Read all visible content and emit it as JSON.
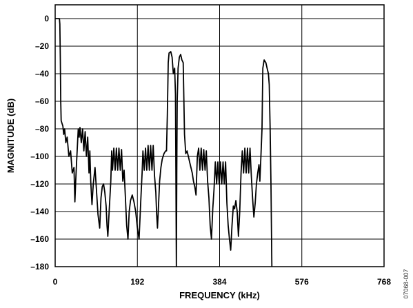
{
  "chart_data": {
    "type": "line",
    "title": "",
    "xlabel": "FREQUENCY (kHz)",
    "ylabel": "MAGNITUDE (dB)",
    "xlim": [
      0,
      768
    ],
    "ylim": [
      -180,
      10
    ],
    "xticks": [
      0,
      192,
      384,
      576,
      768
    ],
    "yticks": [
      0,
      -20,
      -40,
      -60,
      -80,
      -100,
      -120,
      -140,
      -160,
      -180
    ],
    "grid": true,
    "legend": "none",
    "figure_code": "07068-007",
    "series": [
      {
        "values": [
          [
            0,
            0
          ],
          [
            8,
            0
          ],
          [
            10,
            0
          ],
          [
            11,
            -4
          ],
          [
            12,
            -30
          ],
          [
            13,
            -60
          ],
          [
            14,
            -74
          ],
          [
            16,
            -76
          ],
          [
            18,
            -78
          ],
          [
            20,
            -84
          ],
          [
            22,
            -80
          ],
          [
            25,
            -90
          ],
          [
            28,
            -86
          ],
          [
            32,
            -100
          ],
          [
            36,
            -96
          ],
          [
            40,
            -112
          ],
          [
            44,
            -108
          ],
          [
            46,
            -133
          ],
          [
            48,
            -118
          ],
          [
            50,
            -104
          ],
          [
            54,
            -80
          ],
          [
            56,
            -86
          ],
          [
            58,
            -79
          ],
          [
            61,
            -90
          ],
          [
            64,
            -80
          ],
          [
            67,
            -96
          ],
          [
            70,
            -82
          ],
          [
            73,
            -100
          ],
          [
            76,
            -86
          ],
          [
            79,
            -112
          ],
          [
            81,
            -96
          ],
          [
            83,
            -118
          ],
          [
            86,
            -135
          ],
          [
            89,
            -120
          ],
          [
            93,
            -108
          ],
          [
            96,
            -122
          ],
          [
            100,
            -142
          ],
          [
            104,
            -152
          ],
          [
            107,
            -130
          ],
          [
            110,
            -122
          ],
          [
            113,
            -120
          ],
          [
            116,
            -126
          ],
          [
            119,
            -136
          ],
          [
            121,
            -150
          ],
          [
            123,
            -158
          ],
          [
            126,
            -140
          ],
          [
            130,
            -118
          ],
          [
            132,
            -96
          ],
          [
            134,
            -110
          ],
          [
            137,
            -94
          ],
          [
            140,
            -110
          ],
          [
            143,
            -94
          ],
          [
            146,
            -110
          ],
          [
            149,
            -94
          ],
          [
            152,
            -110
          ],
          [
            155,
            -95
          ],
          [
            158,
            -118
          ],
          [
            161,
            -110
          ],
          [
            164,
            -130
          ],
          [
            167,
            -150
          ],
          [
            170,
            -160
          ],
          [
            173,
            -140
          ],
          [
            176,
            -132
          ],
          [
            180,
            -128
          ],
          [
            184,
            -133
          ],
          [
            188,
            -140
          ],
          [
            192,
            -152
          ],
          [
            196,
            -160
          ],
          [
            200,
            -132
          ],
          [
            203,
            -112
          ],
          [
            205,
            -96
          ],
          [
            208,
            -110
          ],
          [
            211,
            -94
          ],
          [
            214,
            -110
          ],
          [
            217,
            -92
          ],
          [
            220,
            -110
          ],
          [
            223,
            -92
          ],
          [
            226,
            -110
          ],
          [
            229,
            -92
          ],
          [
            232,
            -114
          ],
          [
            235,
            -126
          ],
          [
            237,
            -142
          ],
          [
            239,
            -152
          ],
          [
            241,
            -138
          ],
          [
            244,
            -118
          ],
          [
            247,
            -108
          ],
          [
            250,
            -102
          ],
          [
            254,
            -98
          ],
          [
            258,
            -96
          ],
          [
            260,
            -96
          ],
          [
            262,
            -70
          ],
          [
            264,
            -32
          ],
          [
            266,
            -25
          ],
          [
            270,
            -24
          ],
          [
            273,
            -28
          ],
          [
            276,
            -40
          ],
          [
            279,
            -36
          ],
          [
            281,
            -55
          ],
          [
            282,
            -110
          ],
          [
            283,
            -180
          ],
          [
            284,
            -110
          ],
          [
            285,
            -60
          ],
          [
            287,
            -36
          ],
          [
            290,
            -28
          ],
          [
            293,
            -26
          ],
          [
            296,
            -30
          ],
          [
            299,
            -32
          ],
          [
            302,
            -84
          ],
          [
            305,
            -98
          ],
          [
            308,
            -96
          ],
          [
            311,
            -100
          ],
          [
            314,
            -104
          ],
          [
            317,
            -108
          ],
          [
            320,
            -112
          ],
          [
            323,
            -118
          ],
          [
            326,
            -122
          ],
          [
            329,
            -128
          ],
          [
            332,
            -100
          ],
          [
            335,
            -94
          ],
          [
            338,
            -110
          ],
          [
            341,
            -94
          ],
          [
            344,
            -110
          ],
          [
            347,
            -95
          ],
          [
            350,
            -110
          ],
          [
            353,
            -96
          ],
          [
            356,
            -118
          ],
          [
            359,
            -130
          ],
          [
            362,
            -150
          ],
          [
            365,
            -160
          ],
          [
            368,
            -138
          ],
          [
            371,
            -124
          ],
          [
            374,
            -104
          ],
          [
            377,
            -120
          ],
          [
            380,
            -104
          ],
          [
            383,
            -120
          ],
          [
            386,
            -104
          ],
          [
            389,
            -120
          ],
          [
            392,
            -104
          ],
          [
            395,
            -120
          ],
          [
            398,
            -104
          ],
          [
            401,
            -134
          ],
          [
            404,
            -150
          ],
          [
            407,
            -160
          ],
          [
            410,
            -168
          ],
          [
            413,
            -150
          ],
          [
            416,
            -136
          ],
          [
            419,
            -138
          ],
          [
            422,
            -132
          ],
          [
            425,
            -140
          ],
          [
            428,
            -158
          ],
          [
            431,
            -140
          ],
          [
            434,
            -112
          ],
          [
            437,
            -96
          ],
          [
            440,
            -112
          ],
          [
            443,
            -94
          ],
          [
            446,
            -112
          ],
          [
            449,
            -94
          ],
          [
            452,
            -112
          ],
          [
            455,
            -94
          ],
          [
            458,
            -114
          ],
          [
            461,
            -130
          ],
          [
            464,
            -144
          ],
          [
            467,
            -134
          ],
          [
            470,
            -120
          ],
          [
            473,
            -112
          ],
          [
            476,
            -106
          ],
          [
            478,
            -118
          ],
          [
            480,
            -104
          ],
          [
            483,
            -80
          ],
          [
            485,
            -36
          ],
          [
            488,
            -30
          ],
          [
            492,
            -32
          ],
          [
            495,
            -36
          ],
          [
            498,
            -40
          ],
          [
            500,
            -48
          ],
          [
            502,
            -80
          ],
          [
            504,
            -120
          ],
          [
            506,
            -180
          ]
        ]
      }
    ]
  }
}
